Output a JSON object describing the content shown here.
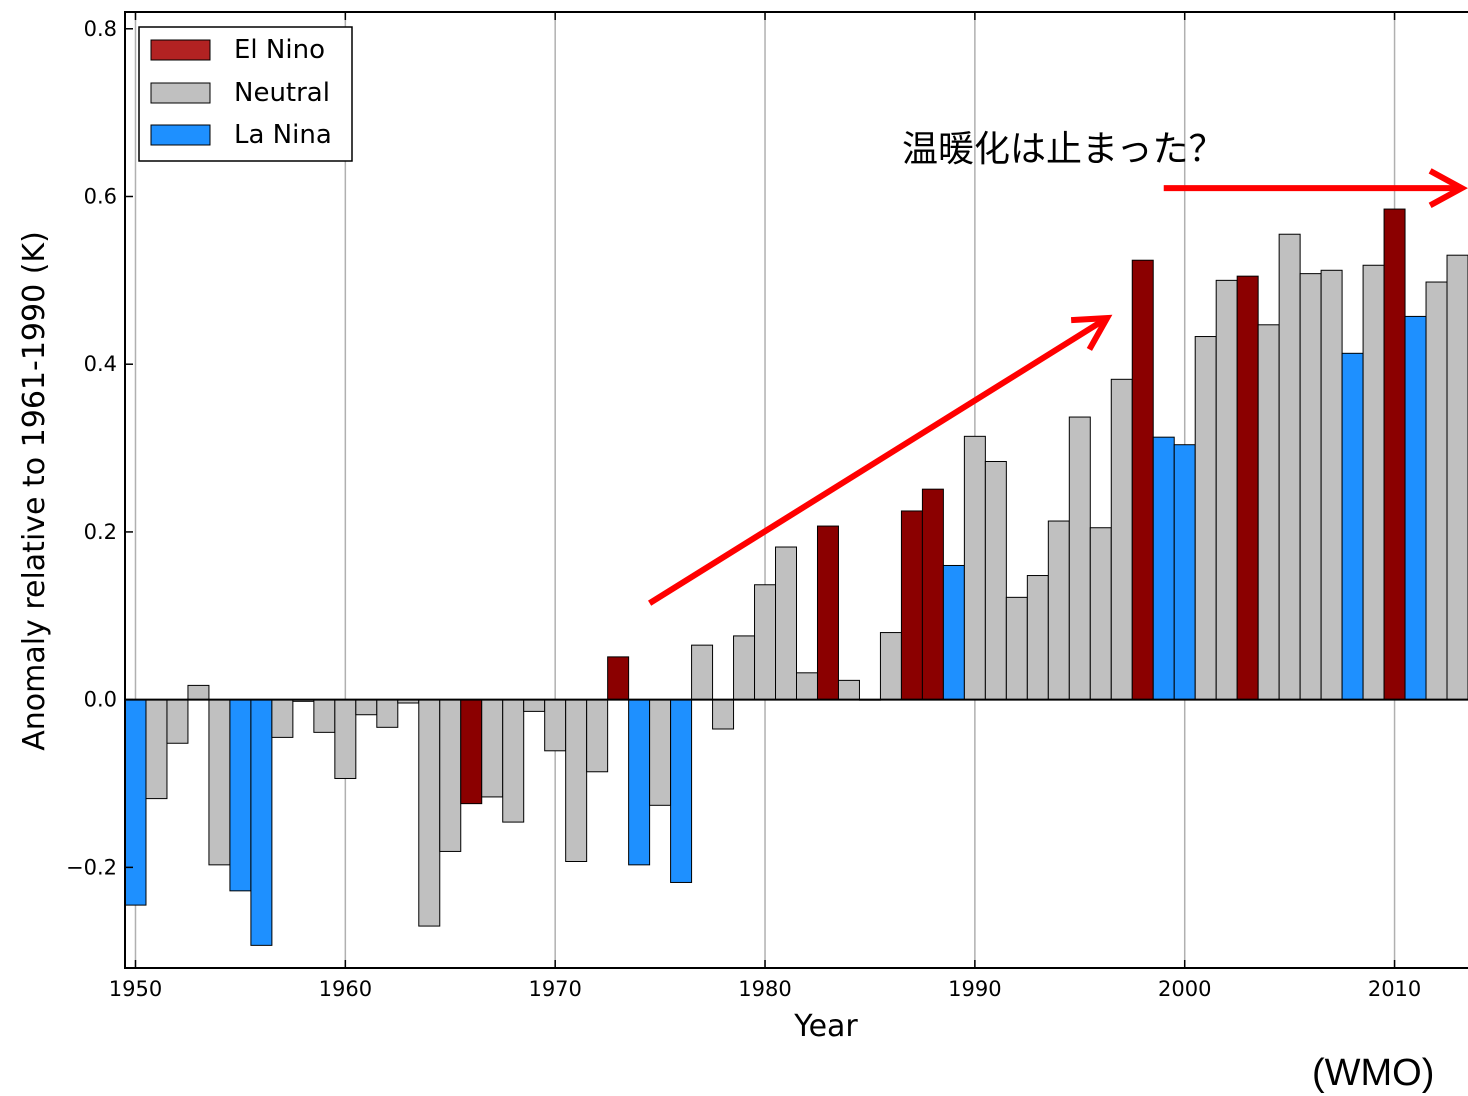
{
  "chart_data": {
    "type": "bar",
    "title": "",
    "xlabel": "Year",
    "ylabel": "Anomaly relative to 1961-1990 (K)",
    "xlim": [
      1949.5,
      2013.5
    ],
    "ylim": [
      -0.32,
      0.82
    ],
    "grid": "vertical",
    "legend_position": "top-left",
    "x_ticks": [
      1950,
      1960,
      1970,
      1980,
      1990,
      2000,
      2010
    ],
    "y_ticks": [
      -0.2,
      0.0,
      0.2,
      0.4,
      0.6,
      0.8
    ],
    "y_tick_labels": [
      "−0.2",
      "0.0",
      "0.2",
      "0.4",
      "0.6",
      "0.8"
    ],
    "series": [
      {
        "name": "El Nino",
        "color": "#8b0000"
      },
      {
        "name": "Neutral",
        "color": "#c0c0c0"
      },
      {
        "name": "La Nina",
        "color": "#1e90ff"
      }
    ],
    "years": [
      1950,
      1951,
      1952,
      1953,
      1954,
      1955,
      1956,
      1957,
      1958,
      1959,
      1960,
      1961,
      1962,
      1963,
      1964,
      1965,
      1966,
      1967,
      1968,
      1969,
      1970,
      1971,
      1972,
      1973,
      1974,
      1975,
      1976,
      1977,
      1978,
      1979,
      1980,
      1981,
      1982,
      1983,
      1984,
      1985,
      1986,
      1987,
      1988,
      1989,
      1990,
      1991,
      1992,
      1993,
      1994,
      1995,
      1996,
      1997,
      1998,
      1999,
      2000,
      2001,
      2002,
      2003,
      2004,
      2005,
      2006,
      2007,
      2008,
      2009,
      2010,
      2011,
      2012,
      2013
    ],
    "values": [
      -0.245,
      -0.118,
      -0.052,
      0.017,
      -0.197,
      -0.228,
      -0.293,
      -0.045,
      -0.002,
      -0.039,
      -0.094,
      -0.018,
      -0.033,
      -0.004,
      -0.27,
      -0.181,
      -0.124,
      -0.116,
      -0.146,
      -0.014,
      -0.061,
      -0.193,
      -0.086,
      0.051,
      -0.197,
      -0.126,
      -0.218,
      0.065,
      -0.035,
      0.076,
      0.137,
      0.182,
      0.032,
      0.207,
      0.023,
      0.0,
      0.08,
      0.225,
      0.251,
      0.16,
      0.314,
      0.284,
      0.122,
      0.148,
      0.213,
      0.337,
      0.205,
      0.382,
      0.524,
      0.313,
      0.304,
      0.433,
      0.5,
      0.505,
      0.447,
      0.555,
      0.508,
      0.512,
      0.413,
      0.518,
      0.585,
      0.457,
      0.498,
      0.53
    ],
    "phases": [
      "La Nina",
      "Neutral",
      "Neutral",
      "Neutral",
      "Neutral",
      "La Nina",
      "La Nina",
      "Neutral",
      "Neutral",
      "Neutral",
      "Neutral",
      "Neutral",
      "Neutral",
      "Neutral",
      "Neutral",
      "Neutral",
      "El Nino",
      "Neutral",
      "Neutral",
      "Neutral",
      "Neutral",
      "Neutral",
      "Neutral",
      "El Nino",
      "La Nina",
      "Neutral",
      "La Nina",
      "Neutral",
      "Neutral",
      "Neutral",
      "Neutral",
      "Neutral",
      "Neutral",
      "El Nino",
      "Neutral",
      "Neutral",
      "Neutral",
      "El Nino",
      "El Nino",
      "La Nina",
      "Neutral",
      "Neutral",
      "Neutral",
      "Neutral",
      "Neutral",
      "Neutral",
      "Neutral",
      "Neutral",
      "El Nino",
      "La Nina",
      "La Nina",
      "Neutral",
      "Neutral",
      "El Nino",
      "Neutral",
      "Neutral",
      "Neutral",
      "Neutral",
      "La Nina",
      "Neutral",
      "El Nino",
      "La Nina",
      "Neutral",
      "Neutral"
    ],
    "annotations": [
      {
        "text": "温暖化は止まった？"
      },
      {
        "text": "(WMO)"
      }
    ],
    "arrows": [
      {
        "from": [
          1974.5,
          0.115
        ],
        "to": [
          1996.3,
          0.455
        ],
        "color": "#ff0000"
      },
      {
        "from": [
          1999.0,
          0.61
        ],
        "to": [
          2013.2,
          0.61
        ],
        "color": "#ff0000"
      }
    ]
  }
}
